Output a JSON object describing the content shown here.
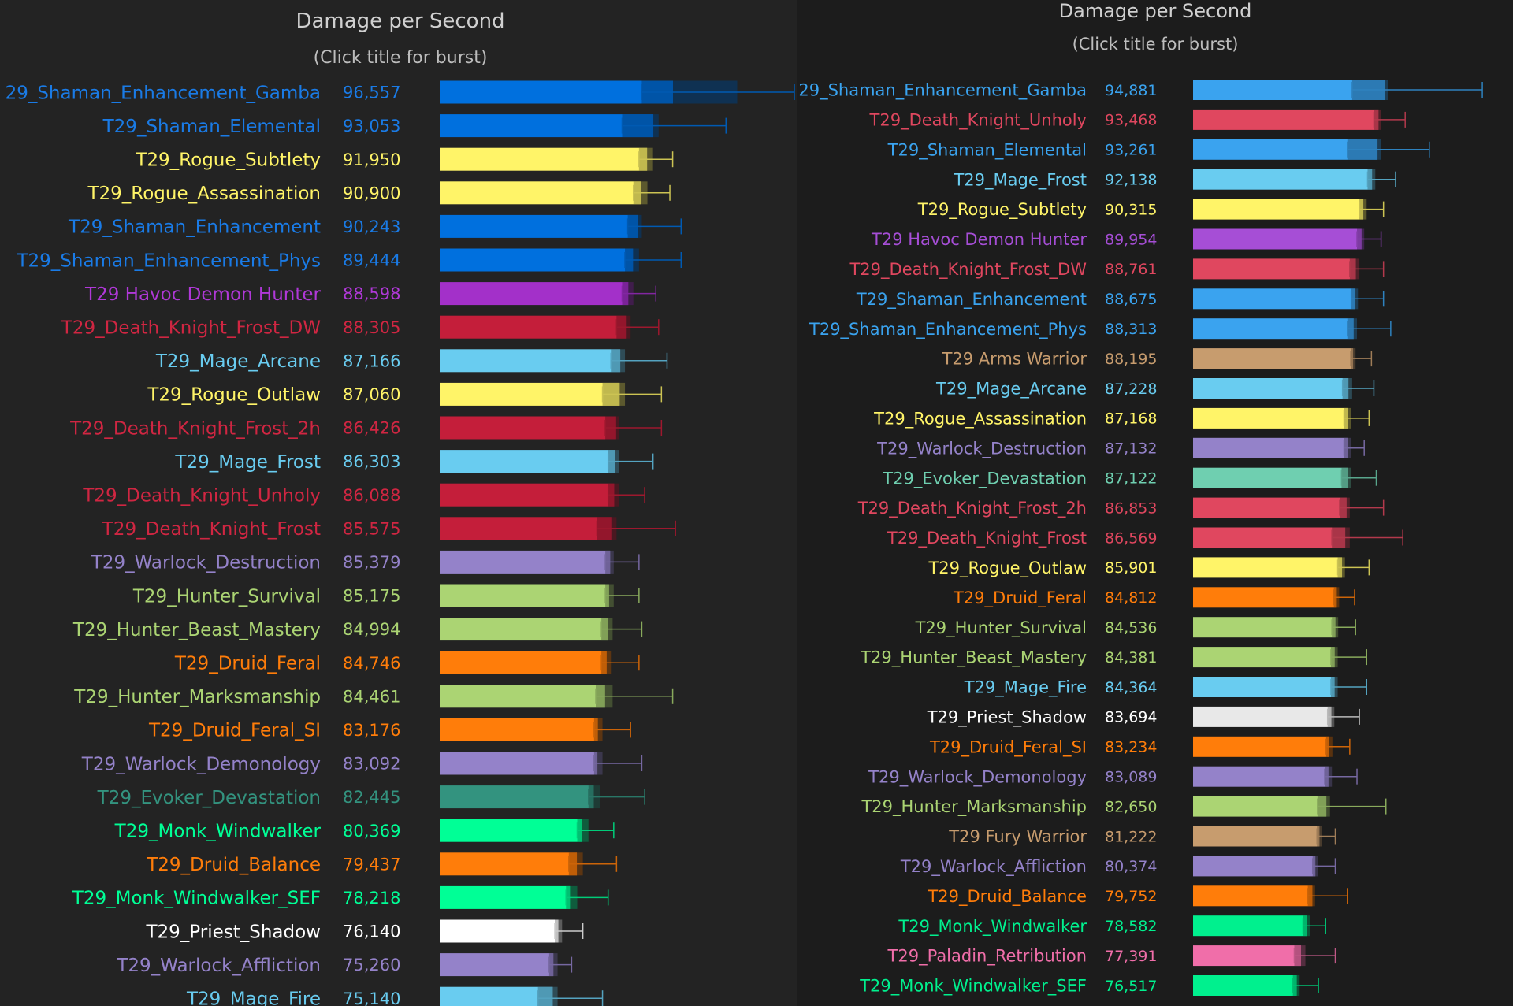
{
  "chart_data": [
    {
      "type": "bar",
      "title": "Damage per Second",
      "subtitle": "(Click title for burst)",
      "grid": false,
      "legend": "none",
      "rows": [
        {
          "name": "29_Shaman_Enhancement_Gamba",
          "value": 96557,
          "color": "#0070de",
          "label_color": "#1a7be6",
          "err_low": 91000,
          "err_high": 108000,
          "upper_whisker": 123000
        },
        {
          "name": "T29_Shaman_Elemental",
          "value": 93053,
          "color": "#0070de",
          "label_color": "#1a7be6",
          "err_low": 87500,
          "err_high": 94000,
          "upper_whisker": 106000
        },
        {
          "name": "T29_Rogue_Subtlety",
          "value": 91950,
          "color": "#fff468",
          "label_color": "#fff468",
          "err_low": 90500,
          "err_high": 93000,
          "upper_whisker": 96500
        },
        {
          "name": "T29_Rogue_Assassination",
          "value": 90900,
          "color": "#fff468",
          "label_color": "#fff468",
          "err_low": 89500,
          "err_high": 92000,
          "upper_whisker": 96000
        },
        {
          "name": "T29_Shaman_Enhancement",
          "value": 90243,
          "color": "#0070de",
          "label_color": "#1a7be6",
          "err_low": 88500,
          "err_high": 91000,
          "upper_whisker": 98000
        },
        {
          "name": "T29_Shaman_Enhancement_Phys",
          "value": 89444,
          "color": "#0070de",
          "label_color": "#1a7be6",
          "err_low": 88000,
          "err_high": 90500,
          "upper_whisker": 98000
        },
        {
          "name": "T29 Havoc Demon Hunter",
          "value": 88598,
          "color": "#a330c9",
          "label_color": "#b038d8",
          "err_low": 87500,
          "err_high": 89500,
          "upper_whisker": 93500
        },
        {
          "name": "T29_Death_Knight_Frost_DW",
          "value": 88305,
          "color": "#c41e3a",
          "label_color": "#d02642",
          "err_low": 86500,
          "err_high": 89000,
          "upper_whisker": 94000
        },
        {
          "name": "T29_Mage_Arcane",
          "value": 87166,
          "color": "#69ccf0",
          "label_color": "#69ccf0",
          "err_low": 85500,
          "err_high": 88000,
          "upper_whisker": 95500
        },
        {
          "name": "T29_Rogue_Outlaw",
          "value": 87060,
          "color": "#fff468",
          "label_color": "#fff468",
          "err_low": 84000,
          "err_high": 88000,
          "upper_whisker": 94500
        },
        {
          "name": "T29_Death_Knight_Frost_2h",
          "value": 86426,
          "color": "#c41e3a",
          "label_color": "#d02642",
          "err_low": 84500,
          "err_high": 87000,
          "upper_whisker": 94500
        },
        {
          "name": "T29_Mage_Frost",
          "value": 86303,
          "color": "#69ccf0",
          "label_color": "#69ccf0",
          "err_low": 85000,
          "err_high": 87000,
          "upper_whisker": 93000
        },
        {
          "name": "T29_Death_Knight_Unholy",
          "value": 86088,
          "color": "#c41e3a",
          "label_color": "#d02642",
          "err_low": 85000,
          "err_high": 87000,
          "upper_whisker": 91500
        },
        {
          "name": "T29_Death_Knight_Frost",
          "value": 85575,
          "color": "#c41e3a",
          "label_color": "#d02642",
          "err_low": 83000,
          "err_high": 86500,
          "upper_whisker": 97000
        },
        {
          "name": "T29_Warlock_Destruction",
          "value": 85379,
          "color": "#9482c9",
          "label_color": "#9482c9",
          "err_low": 84500,
          "err_high": 86000,
          "upper_whisker": 90500
        },
        {
          "name": "T29_Hunter_Survival",
          "value": 85175,
          "color": "#abd473",
          "label_color": "#abd473",
          "err_low": 84500,
          "err_high": 86000,
          "upper_whisker": 90500
        },
        {
          "name": "T29_Hunter_Beast_Mastery",
          "value": 84994,
          "color": "#abd473",
          "label_color": "#abd473",
          "err_low": 83800,
          "err_high": 85800,
          "upper_whisker": 91000
        },
        {
          "name": "T29_Druid_Feral",
          "value": 84746,
          "color": "#ff7d0a",
          "label_color": "#ff7d0a",
          "err_low": 83800,
          "err_high": 85500,
          "upper_whisker": 90500
        },
        {
          "name": "T29_Hunter_Marksmanship",
          "value": 84461,
          "color": "#abd473",
          "label_color": "#abd473",
          "err_low": 82800,
          "err_high": 85800,
          "upper_whisker": 96500
        },
        {
          "name": "T29_Druid_Feral_SI",
          "value": 83176,
          "color": "#ff7d0a",
          "label_color": "#ff7d0a",
          "err_low": 82500,
          "err_high": 84000,
          "upper_whisker": 89000
        },
        {
          "name": "T29_Warlock_Demonology",
          "value": 83092,
          "color": "#9482c9",
          "label_color": "#9482c9",
          "err_low": 82500,
          "err_high": 84000,
          "upper_whisker": 91000
        },
        {
          "name": "T29_Evoker_Devastation",
          "value": 82445,
          "color": "#33937f",
          "label_color": "#33937f",
          "err_low": 81500,
          "err_high": 83500,
          "upper_whisker": 91500
        },
        {
          "name": "T29_Monk_Windwalker",
          "value": 80369,
          "color": "#00ff96",
          "label_color": "#00ff96",
          "err_low": 79500,
          "err_high": 81500,
          "upper_whisker": 86000
        },
        {
          "name": "T29_Druid_Balance",
          "value": 79437,
          "color": "#ff7d0a",
          "label_color": "#ff7d0a",
          "err_low": 78000,
          "err_high": 80500,
          "upper_whisker": 86500
        },
        {
          "name": "T29_Monk_Windwalker_SEF",
          "value": 78218,
          "color": "#00ff96",
          "label_color": "#00ff96",
          "err_low": 77500,
          "err_high": 79500,
          "upper_whisker": 85000
        },
        {
          "name": "T29_Priest_Shadow",
          "value": 76140,
          "color": "#ffffff",
          "label_color": "#ffffff",
          "err_low": 75500,
          "err_high": 76800,
          "upper_whisker": 80500
        },
        {
          "name": "T29_Warlock_Affliction",
          "value": 75260,
          "color": "#9482c9",
          "label_color": "#9482c9",
          "err_low": 74500,
          "err_high": 76000,
          "upper_whisker": 78500
        },
        {
          "name": "T29_Mage_Fire",
          "value": 75140,
          "color": "#69ccf0",
          "label_color": "#69ccf0",
          "err_low": 72500,
          "err_high": 76000,
          "upper_whisker": 84000
        }
      ]
    },
    {
      "type": "bar",
      "title": "Damage per Second",
      "subtitle": "(Click title for burst)",
      "grid": false,
      "legend": "none",
      "rows": [
        {
          "name": "29_Shaman_Enhancement_Gamba",
          "value": 94881,
          "color": "#3aa3ef",
          "label_color": "#3aa3ef",
          "err_low": 88000,
          "err_high": 95500,
          "upper_whisker": 115000
        },
        {
          "name": "T29_Death_Knight_Unholy",
          "value": 93468,
          "color": "#e0475f",
          "label_color": "#e0475f",
          "err_low": 92500,
          "err_high": 94000,
          "upper_whisker": 99000
        },
        {
          "name": "T29_Shaman_Elemental",
          "value": 93261,
          "color": "#3aa3ef",
          "label_color": "#3aa3ef",
          "err_low": 87000,
          "err_high": 94000,
          "upper_whisker": 104000
        },
        {
          "name": "T29_Mage_Frost",
          "value": 92138,
          "color": "#69ccf0",
          "label_color": "#69ccf0",
          "err_low": 91200,
          "err_high": 92800,
          "upper_whisker": 97000
        },
        {
          "name": "T29_Rogue_Subtlety",
          "value": 90315,
          "color": "#fff468",
          "label_color": "#fff468",
          "err_low": 89500,
          "err_high": 91000,
          "upper_whisker": 94500
        },
        {
          "name": "T29 Havoc Demon Hunter",
          "value": 89954,
          "color": "#a64ed6",
          "label_color": "#a64ed6",
          "err_low": 89000,
          "err_high": 90500,
          "upper_whisker": 94000
        },
        {
          "name": "T29_Death_Knight_Frost_DW",
          "value": 88761,
          "color": "#e0475f",
          "label_color": "#e0475f",
          "err_low": 87500,
          "err_high": 89500,
          "upper_whisker": 94500
        },
        {
          "name": "T29_Shaman_Enhancement",
          "value": 88675,
          "color": "#3aa3ef",
          "label_color": "#3aa3ef",
          "err_low": 87800,
          "err_high": 89200,
          "upper_whisker": 94500
        },
        {
          "name": "T29_Shaman_Enhancement_Phys",
          "value": 88313,
          "color": "#3aa3ef",
          "label_color": "#3aa3ef",
          "err_low": 87000,
          "err_high": 89000,
          "upper_whisker": 96000
        },
        {
          "name": "T29 Arms Warrior",
          "value": 88195,
          "color": "#c79c6e",
          "label_color": "#c79c6e",
          "err_low": 87700,
          "err_high": 88700,
          "upper_whisker": 92000
        },
        {
          "name": "T29_Mage_Arcane",
          "value": 87228,
          "color": "#69ccf0",
          "label_color": "#69ccf0",
          "err_low": 86000,
          "err_high": 88000,
          "upper_whisker": 92500
        },
        {
          "name": "T29_Rogue_Assassination",
          "value": 87168,
          "color": "#fff468",
          "label_color": "#fff468",
          "err_low": 86300,
          "err_high": 87800,
          "upper_whisker": 91500
        },
        {
          "name": "T29_Warlock_Destruction",
          "value": 87132,
          "color": "#9482c9",
          "label_color": "#9482c9",
          "err_low": 86300,
          "err_high": 87700,
          "upper_whisker": 90500
        },
        {
          "name": "T29_Evoker_Devastation",
          "value": 87122,
          "color": "#6fcfb0",
          "label_color": "#6fcfb0",
          "err_low": 85800,
          "err_high": 87800,
          "upper_whisker": 93000
        },
        {
          "name": "T29_Death_Knight_Frost_2h",
          "value": 86853,
          "color": "#e0475f",
          "label_color": "#e0475f",
          "err_low": 85400,
          "err_high": 87500,
          "upper_whisker": 94500
        },
        {
          "name": "T29_Death_Knight_Frost",
          "value": 86569,
          "color": "#e0475f",
          "label_color": "#e0475f",
          "err_low": 83800,
          "err_high": 87500,
          "upper_whisker": 98500
        },
        {
          "name": "T29_Rogue_Outlaw",
          "value": 85901,
          "color": "#fff468",
          "label_color": "#fff468",
          "err_low": 85000,
          "err_high": 86500,
          "upper_whisker": 91500
        },
        {
          "name": "T29_Druid_Feral",
          "value": 84812,
          "color": "#ff7d0a",
          "label_color": "#ff7d0a",
          "err_low": 84200,
          "err_high": 85300,
          "upper_whisker": 88500
        },
        {
          "name": "T29_Hunter_Survival",
          "value": 84536,
          "color": "#abd473",
          "label_color": "#abd473",
          "err_low": 83800,
          "err_high": 85100,
          "upper_whisker": 88700
        },
        {
          "name": "T29_Hunter_Beast_Mastery",
          "value": 84381,
          "color": "#abd473",
          "label_color": "#abd473",
          "err_low": 83600,
          "err_high": 85000,
          "upper_whisker": 91000
        },
        {
          "name": "T29_Mage_Fire",
          "value": 84364,
          "color": "#69ccf0",
          "label_color": "#69ccf0",
          "err_low": 83600,
          "err_high": 85000,
          "upper_whisker": 91000
        },
        {
          "name": "T29_Priest_Shadow",
          "value": 83694,
          "color": "#e8e8e8",
          "label_color": "#ffffff",
          "err_low": 82900,
          "err_high": 84300,
          "upper_whisker": 89500
        },
        {
          "name": "T29_Druid_Feral_SI",
          "value": 83234,
          "color": "#ff7d0a",
          "label_color": "#ff7d0a",
          "err_low": 82600,
          "err_high": 83900,
          "upper_whisker": 87500
        },
        {
          "name": "T29_Warlock_Demonology",
          "value": 83089,
          "color": "#9482c9",
          "label_color": "#9482c9",
          "err_low": 82300,
          "err_high": 83800,
          "upper_whisker": 89000
        },
        {
          "name": "T29_Hunter_Marksmanship",
          "value": 82650,
          "color": "#abd473",
          "label_color": "#abd473",
          "err_low": 80800,
          "err_high": 83400,
          "upper_whisker": 95000
        },
        {
          "name": "T29 Fury Warrior",
          "value": 81222,
          "color": "#c79c6e",
          "label_color": "#c79c6e",
          "err_low": 80700,
          "err_high": 81800,
          "upper_whisker": 84500
        },
        {
          "name": "T29_Warlock_Affliction",
          "value": 80374,
          "color": "#9482c9",
          "label_color": "#9482c9",
          "err_low": 79800,
          "err_high": 80900,
          "upper_whisker": 84500
        },
        {
          "name": "T29_Druid_Balance",
          "value": 79752,
          "color": "#ff7d0a",
          "label_color": "#ff7d0a",
          "err_low": 78800,
          "err_high": 80300,
          "upper_whisker": 87000
        },
        {
          "name": "T29_Monk_Windwalker",
          "value": 78582,
          "color": "#00f08e",
          "label_color": "#00f08e",
          "err_low": 77800,
          "err_high": 79300,
          "upper_whisker": 82500
        },
        {
          "name": "T29_Paladin_Retribution",
          "value": 77391,
          "color": "#f06ea9",
          "label_color": "#f06ea9",
          "err_low": 76000,
          "err_high": 78300,
          "upper_whisker": 84500
        },
        {
          "name": "T29_Monk_Windwalker_SEF",
          "value": 76517,
          "color": "#00f08e",
          "label_color": "#00f08e",
          "err_low": 75700,
          "err_high": 77100,
          "upper_whisker": 81000
        }
      ]
    }
  ]
}
